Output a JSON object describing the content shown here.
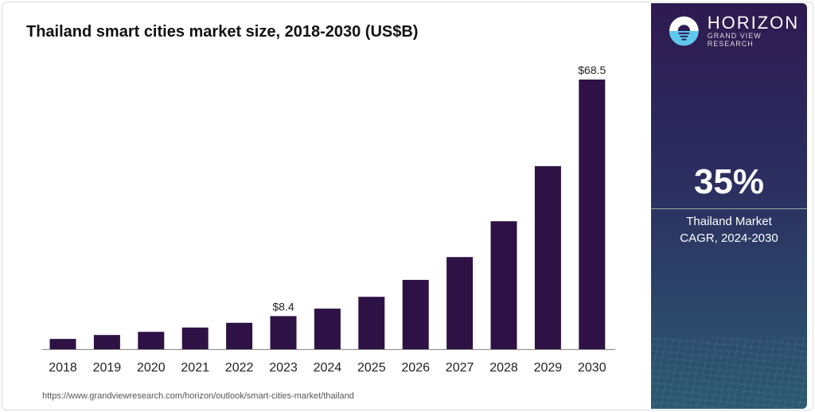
{
  "chart_data": {
    "type": "bar",
    "title": "Thailand smart cities market size, 2018-2030 (US$B)",
    "categories": [
      "2018",
      "2019",
      "2020",
      "2021",
      "2022",
      "2023",
      "2024",
      "2025",
      "2026",
      "2027",
      "2028",
      "2029",
      "2030"
    ],
    "values": [
      2.6,
      3.6,
      4.4,
      5.5,
      6.7,
      8.4,
      10.3,
      13.3,
      17.6,
      23.4,
      32.5,
      46.5,
      68.5
    ],
    "data_labels": {
      "2023": "$8.4",
      "2030": "$68.5"
    },
    "bar_color": "#2e1245",
    "ylim": [
      0,
      68.5
    ],
    "grid": false
  },
  "source": "https://www.grandviewresearch.com/horizon/outlook/smart-cities-market/thailand",
  "panel": {
    "logo_name": "HORIZON",
    "logo_sub": "GRAND VIEW RESEARCH",
    "cagr": "35%",
    "desc_line1": "Thailand Market",
    "desc_line2": "CAGR, 2024-2030"
  }
}
